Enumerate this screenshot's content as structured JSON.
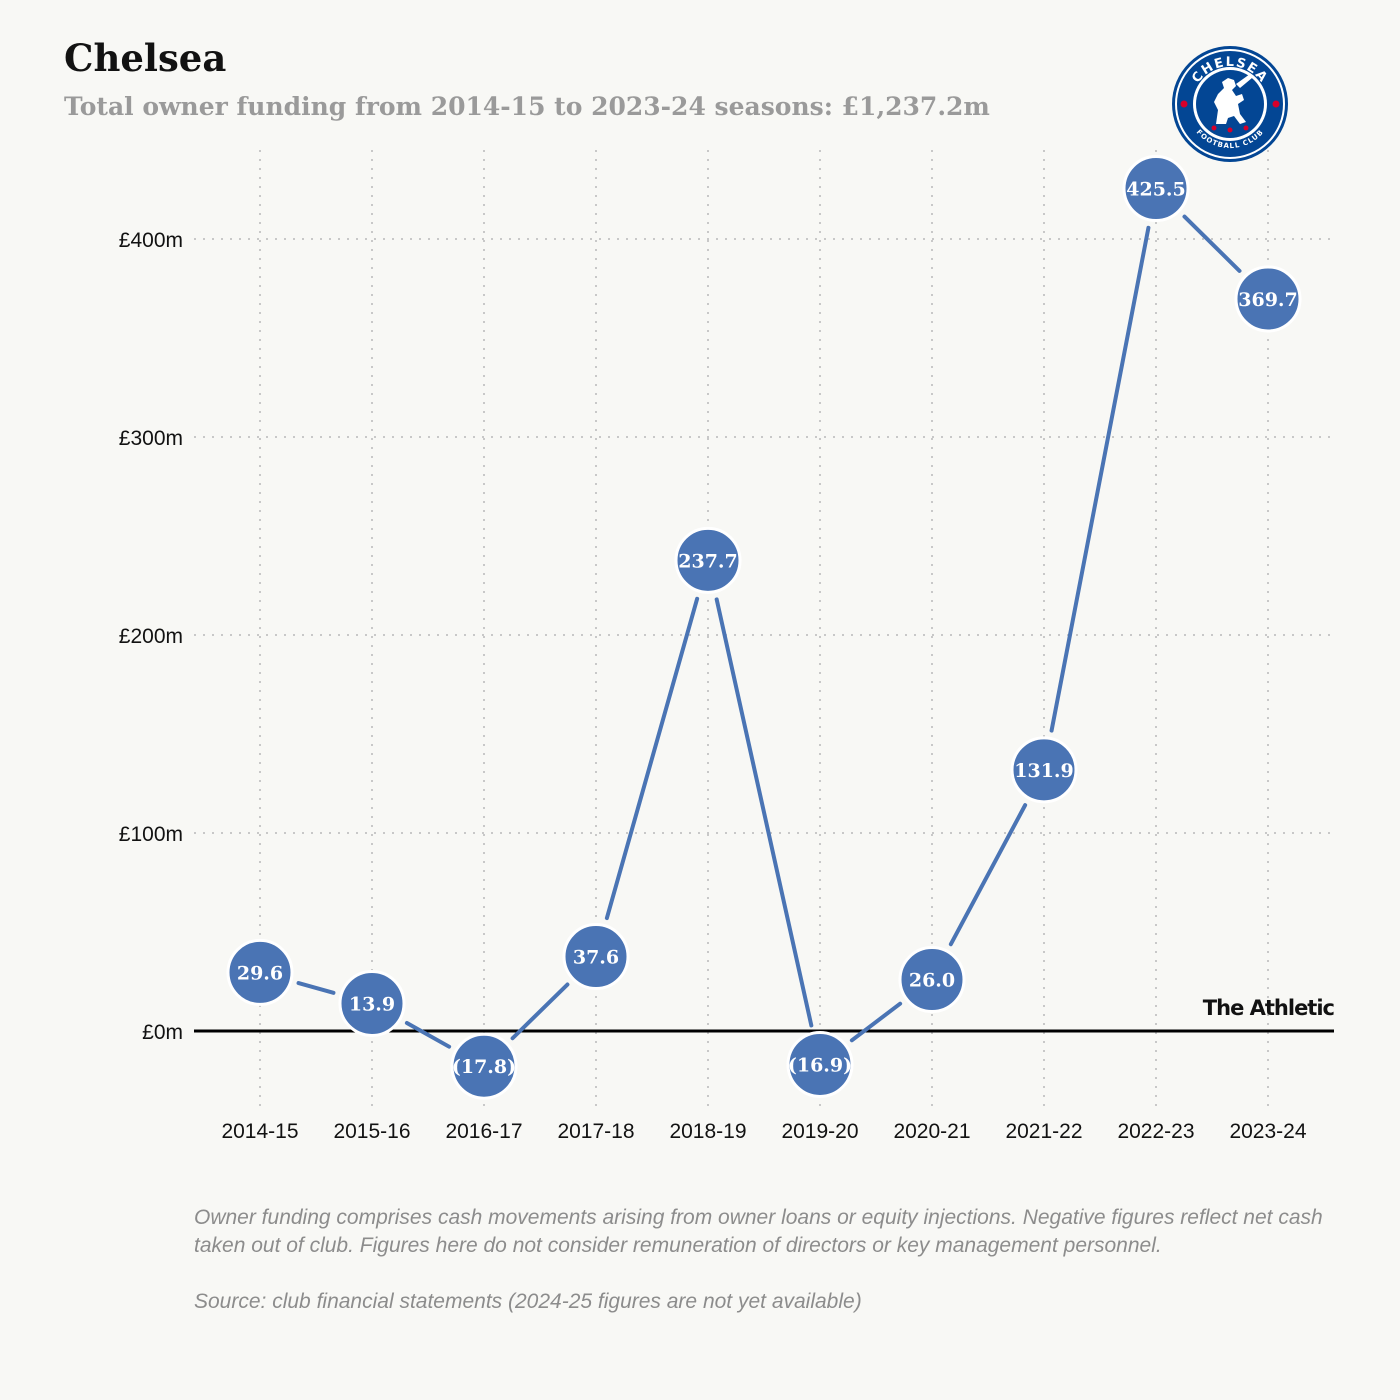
{
  "header": {
    "title": "Chelsea",
    "subtitle": "Total owner funding from 2014-15 to 2023-24 seasons: £1,237.2m"
  },
  "crest": {
    "top_text": "CHELSEA",
    "bottom_text": "FOOTBALL CLUB",
    "icon": "chelsea-crest-icon",
    "colors": {
      "primary": "#034694",
      "ring": "#ffffff",
      "accent": "#d6002a"
    }
  },
  "chart_data": {
    "type": "line",
    "title": "Chelsea",
    "subtitle": "Total owner funding from 2014-15 to 2023-24 seasons: £1,237.2m",
    "xlabel": "",
    "ylabel": "",
    "categories": [
      "2014-15",
      "2015-16",
      "2016-17",
      "2017-18",
      "2018-19",
      "2019-20",
      "2020-21",
      "2021-22",
      "2022-23",
      "2023-24"
    ],
    "values": [
      29.6,
      13.9,
      -17.8,
      37.6,
      237.7,
      -16.9,
      26.0,
      131.9,
      425.5,
      369.7
    ],
    "labels": [
      "29.6",
      "13.9",
      "(17.8)",
      "37.6",
      "237.7",
      "(16.9)",
      "26.0",
      "131.9",
      "425.5",
      "369.7"
    ],
    "ylim": [
      -30,
      450
    ],
    "yticks": [
      0,
      100,
      200,
      300,
      400
    ],
    "ytick_labels": [
      "£0m",
      "£100m",
      "£200m",
      "£300m",
      "£400m"
    ],
    "grid": true,
    "legend": "none",
    "colors": {
      "line": "#4a74b4",
      "marker": "#4a74b4",
      "marker_stroke": "#ffffff",
      "zero_line": "#000000",
      "grid": "#c8c8c8"
    }
  },
  "footer": {
    "note": "Owner funding comprises cash movements arising from owner loans or equity injections. Negative figures reflect net cash taken out of club. Figures here do not consider remuneration of directors or key management personnel.",
    "source": "Source: club financial statements (2024-25 figures are not yet available)",
    "brand": "The Athletic"
  }
}
